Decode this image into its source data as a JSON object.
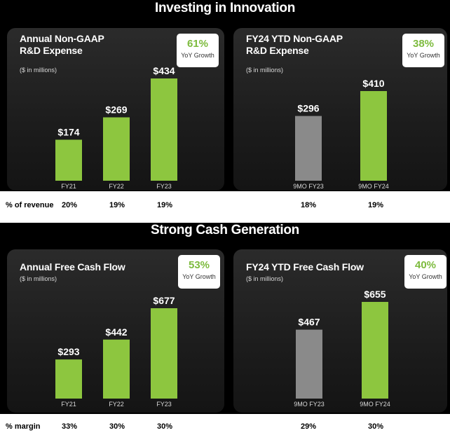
{
  "sections": [
    {
      "title": "Investing in Innovation",
      "metric_label": "% of revenue",
      "panels": [
        {
          "title": "Annual Non-GAAP\nR&D Expense",
          "subtitle": "($ in millions)",
          "growth_pct": "61%",
          "growth_label": "YoY Growth",
          "metric_values": [
            "20%",
            "19%",
            "19%"
          ]
        },
        {
          "title": "FY24 YTD Non-GAAP\nR&D Expense",
          "subtitle": "($ in millions)",
          "growth_pct": "38%",
          "growth_label": "YoY Growth",
          "metric_values": [
            "18%",
            "19%"
          ]
        }
      ]
    },
    {
      "title": "Strong Cash Generation",
      "metric_label": "% margin",
      "panels": [
        {
          "title": "Annual Free Cash Flow",
          "subtitle": "($ in millions)",
          "growth_pct": "53%",
          "growth_label": "YoY Growth",
          "metric_values": [
            "33%",
            "30%",
            "30%"
          ]
        },
        {
          "title": "FY24 YTD Free Cash Flow",
          "subtitle": "($ in millions)",
          "growth_pct": "40%",
          "growth_label": "YoY Growth",
          "metric_values": [
            "29%",
            "30%"
          ]
        }
      ]
    }
  ],
  "colors": {
    "bar_current": "#8dc63f",
    "bar_prior": "#8a8a8a",
    "accent": "#7dbb3e"
  },
  "chart_data": [
    {
      "type": "bar",
      "title": "Annual Non-GAAP R&D Expense",
      "ylabel": "($ in millions)",
      "categories": [
        "FY21",
        "FY22",
        "FY23"
      ],
      "values": [
        174,
        269,
        434
      ],
      "value_labels": [
        "$174",
        "$269",
        "$434"
      ],
      "bar_colors": [
        "#8dc63f",
        "#8dc63f",
        "#8dc63f"
      ]
    },
    {
      "type": "bar",
      "title": "FY24 YTD Non-GAAP R&D Expense",
      "ylabel": "($ in millions)",
      "categories": [
        "9MO FY23",
        "9MO FY24"
      ],
      "values": [
        296,
        410
      ],
      "value_labels": [
        "$296",
        "$410"
      ],
      "bar_colors": [
        "#8a8a8a",
        "#8dc63f"
      ]
    },
    {
      "type": "bar",
      "title": "Annual Free Cash Flow",
      "ylabel": "($ in millions)",
      "categories": [
        "FY21",
        "FY22",
        "FY23"
      ],
      "values": [
        293,
        442,
        677
      ],
      "value_labels": [
        "$293",
        "$442",
        "$677"
      ],
      "bar_colors": [
        "#8dc63f",
        "#8dc63f",
        "#8dc63f"
      ]
    },
    {
      "type": "bar",
      "title": "FY24 YTD Free Cash Flow",
      "ylabel": "($ in millions)",
      "categories": [
        "9MO FY23",
        "9MO FY24"
      ],
      "values": [
        467,
        655
      ],
      "value_labels": [
        "$467",
        "$655"
      ],
      "bar_colors": [
        "#8a8a8a",
        "#8dc63f"
      ]
    }
  ]
}
